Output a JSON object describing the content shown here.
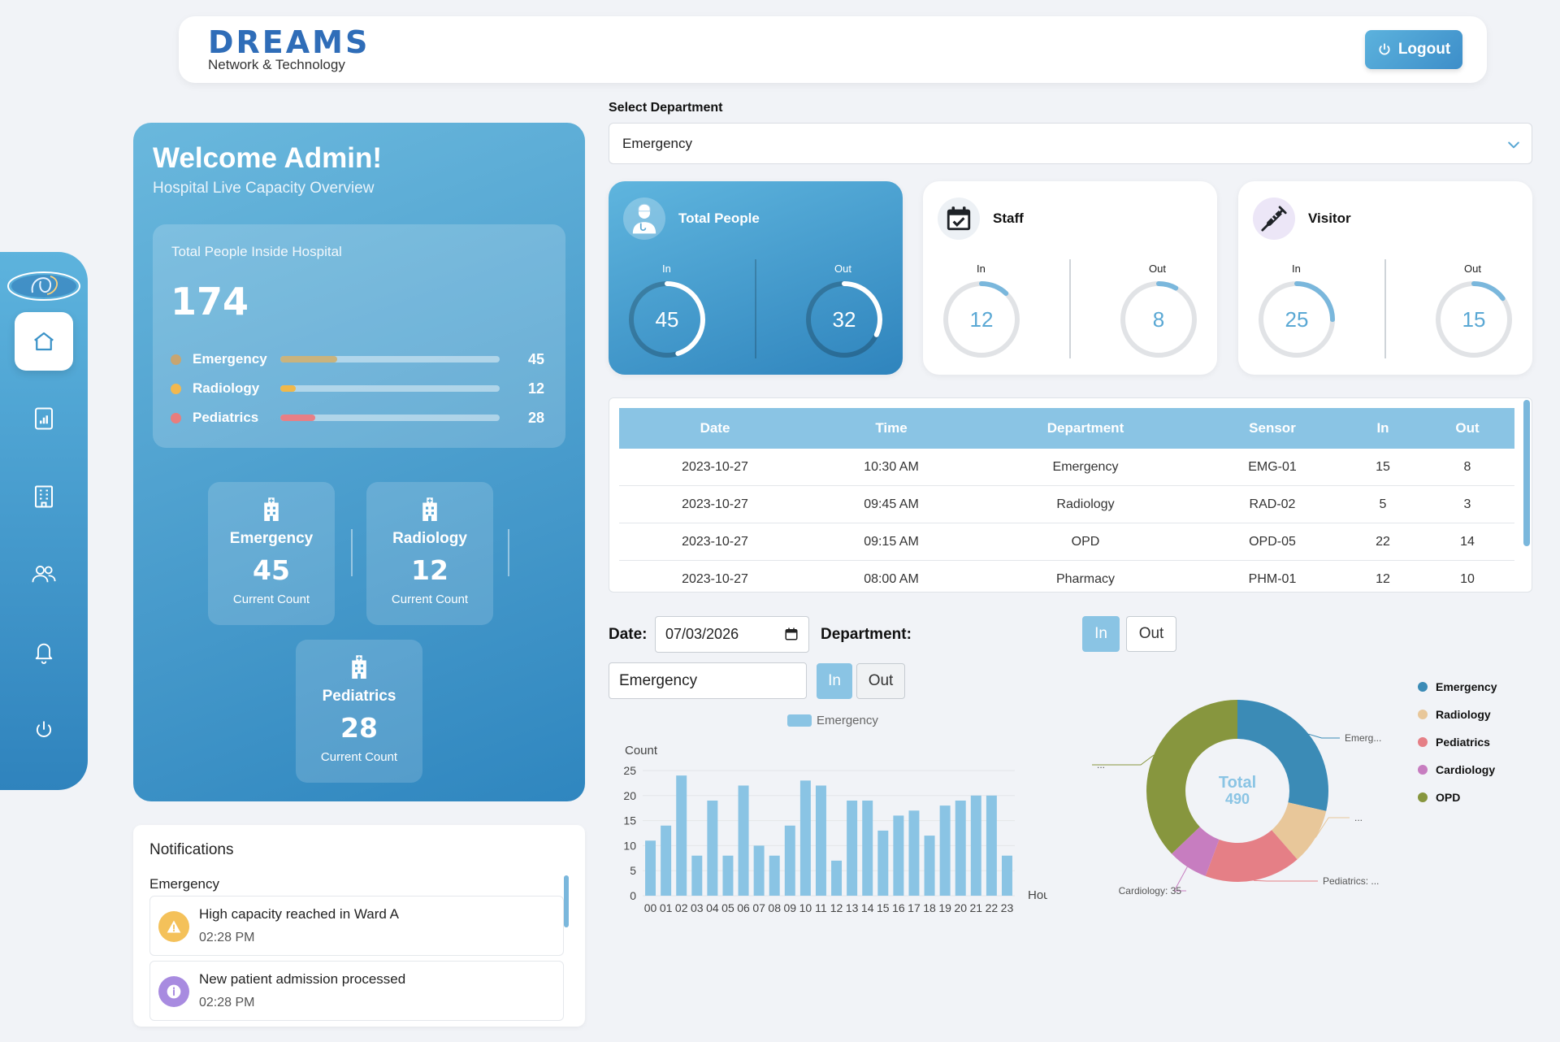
{
  "header": {
    "logo_main": "DREAMS",
    "logo_sub": "Network & Technology",
    "logout_label": "Logout"
  },
  "sidebar": {
    "items": [
      {
        "icon": "home-icon",
        "active": true
      },
      {
        "icon": "bar-chart-icon"
      },
      {
        "icon": "building-icon"
      },
      {
        "icon": "users-icon"
      },
      {
        "icon": "bell-icon"
      },
      {
        "icon": "power-icon"
      }
    ]
  },
  "welcome": {
    "title": "Welcome Admin!",
    "subtitle": "Hospital Live Capacity Overview",
    "total_label": "Total People Inside Hospital",
    "total_value": "174",
    "departments": [
      {
        "name": "Emergency",
        "value": "45",
        "color": "#c7a571",
        "fill": 0.26,
        "bar": "#c9b37d"
      },
      {
        "name": "Radiology",
        "value": "12",
        "color": "#f2b84f",
        "fill": 0.07,
        "bar": "#f0b84a"
      },
      {
        "name": "Pediatrics",
        "value": "28",
        "color": "#e87d7d",
        "fill": 0.16,
        "bar": "#e77f86"
      }
    ],
    "cards": [
      {
        "name": "Emergency",
        "value": "45",
        "label": "Current Count"
      },
      {
        "name": "Radiology",
        "value": "12",
        "label": "Current Count"
      },
      {
        "name": "Pediatrics",
        "value": "28",
        "label": "Current Count"
      }
    ]
  },
  "notifications": {
    "title": "Notifications",
    "group": "Emergency",
    "items": [
      {
        "text": "High capacity reached in Ward A",
        "time": "02:28 PM",
        "icon": "warning-icon",
        "color": "#f4c15a"
      },
      {
        "text": "New patient admission processed",
        "time": "02:28 PM",
        "icon": "info-icon",
        "color": "#a88be0"
      }
    ]
  },
  "select": {
    "label": "Select Department",
    "value": "Emergency"
  },
  "stats": [
    {
      "title": "Total People",
      "in_label": "In",
      "out_label": "Out",
      "in": "45",
      "out": "32",
      "in_frac": 0.45,
      "out_frac": 0.32,
      "icon": "doctor-icon"
    },
    {
      "title": "Staff",
      "in_label": "In",
      "out_label": "Out",
      "in": "12",
      "out": "8",
      "in_frac": 0.12,
      "out_frac": 0.08,
      "icon": "calendar-check-icon"
    },
    {
      "title": "Visitor",
      "in_label": "In",
      "out_label": "Out",
      "in": "25",
      "out": "15",
      "in_frac": 0.25,
      "out_frac": 0.15,
      "icon": "syringe-icon"
    }
  ],
  "table": {
    "headers": [
      "Date",
      "Time",
      "Department",
      "Sensor",
      "In",
      "Out"
    ],
    "rows": [
      [
        "2023-10-27",
        "10:30 AM",
        "Emergency",
        "EMG-01",
        "15",
        "8"
      ],
      [
        "2023-10-27",
        "09:45 AM",
        "Radiology",
        "RAD-02",
        "5",
        "3"
      ],
      [
        "2023-10-27",
        "09:15 AM",
        "OPD",
        "OPD-05",
        "22",
        "14"
      ],
      [
        "2023-10-27",
        "08:00 AM",
        "Pharmacy",
        "PHM-01",
        "12",
        "10"
      ]
    ]
  },
  "filters": {
    "date_label": "Date:",
    "date_value": "07/03/2026",
    "department_label": "Department:",
    "in_label": "In",
    "out_label": "Out",
    "department_value": "Emergency"
  },
  "chart_data": [
    {
      "type": "bar",
      "legend": "Emergency",
      "ylabel": "Count",
      "xlabel": "Hour",
      "ylim": [
        0,
        25
      ],
      "yticks": [
        0,
        5,
        10,
        15,
        20,
        25
      ],
      "color": "#8ac4e4",
      "categories": [
        "00",
        "01",
        "02",
        "03",
        "04",
        "05",
        "06",
        "07",
        "08",
        "09",
        "10",
        "11",
        "12",
        "13",
        "14",
        "15",
        "16",
        "17",
        "18",
        "19",
        "20",
        "21",
        "22",
        "23"
      ],
      "series": [
        {
          "name": "Emergency",
          "values": [
            11,
            14,
            24,
            8,
            19,
            8,
            22,
            10,
            8,
            14,
            23,
            22,
            7,
            19,
            19,
            13,
            16,
            17,
            12,
            18,
            19,
            20,
            20,
            8
          ]
        },
        {
          "values": [
            0,
            0,
            0,
            0,
            0,
            0,
            0,
            0,
            0,
            0,
            0,
            0,
            0,
            0,
            0,
            0,
            0,
            0,
            0,
            0,
            0,
            0,
            0,
            0
          ]
        }
      ]
    },
    {
      "type": "pie",
      "center_label": "Total",
      "center_value": "490",
      "labels": [
        "Emergency",
        "Radiology",
        "Pediatrics",
        "Cardiology",
        "OPD"
      ],
      "values": [
        140,
        49,
        84,
        35,
        182
      ],
      "colors": [
        "#3b8bb6",
        "#e8c79a",
        "#e57f86",
        "#c77dc0",
        "#87963e"
      ],
      "slice_labels": [
        "Emerg...",
        "...",
        "Pediatrics: ...",
        "Cardiology: 35",
        "..."
      ]
    }
  ]
}
